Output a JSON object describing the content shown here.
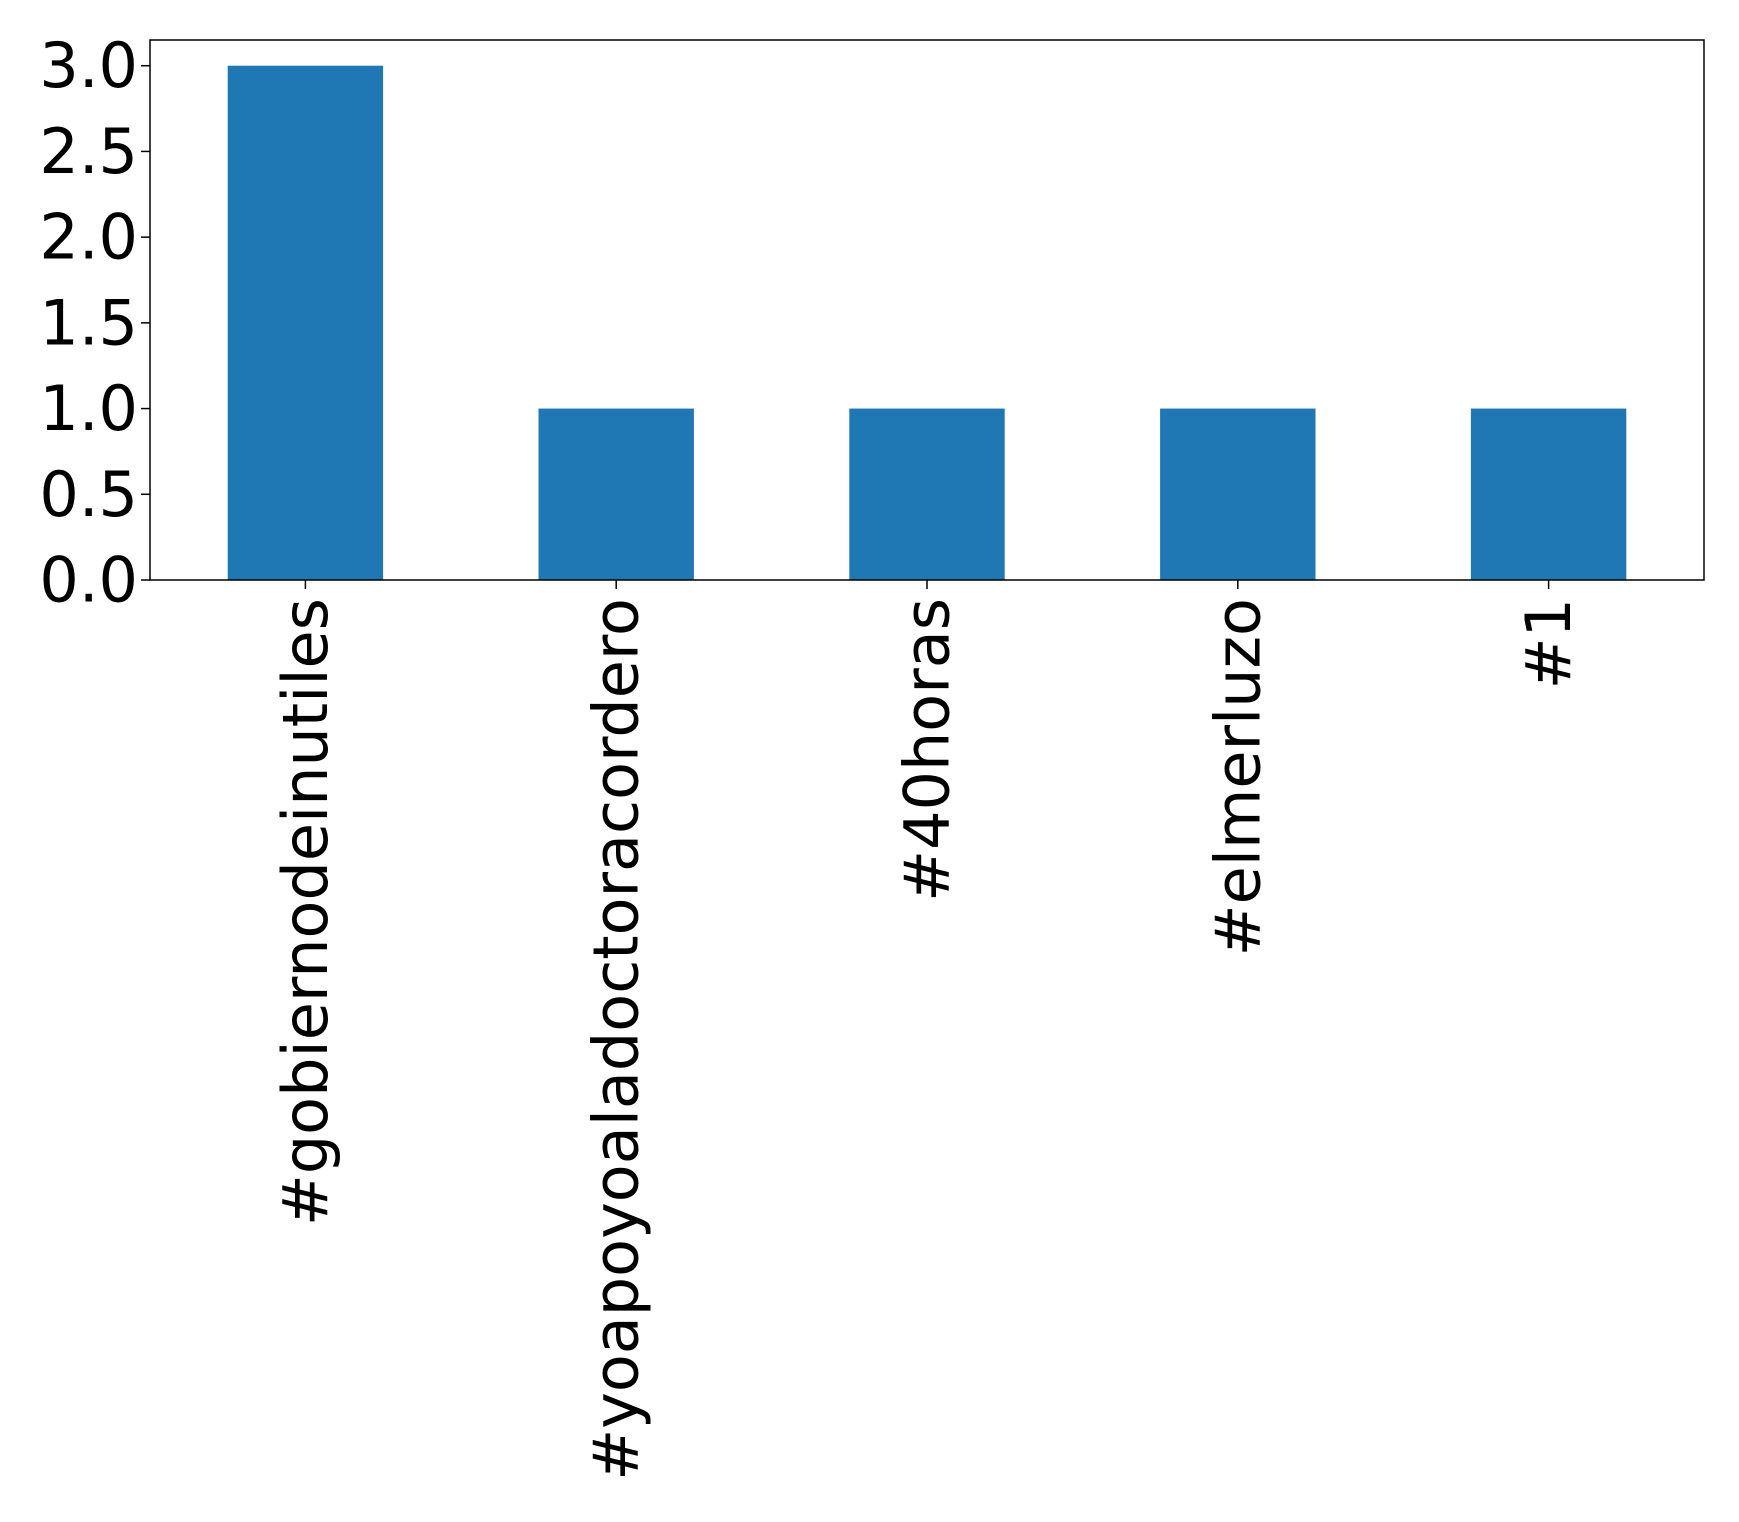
{
  "chart_data": {
    "type": "bar",
    "title": "",
    "xlabel": "",
    "ylabel": "",
    "categories": [
      "#gobiernodeinutiles",
      "#yoapoyoaladoctoracordero",
      "#40horas",
      "#elmerluzo",
      "#1"
    ],
    "values": [
      3,
      1,
      1,
      1,
      1
    ],
    "ylim": [
      0,
      3.15
    ],
    "yticks": [
      "0.0",
      "0.5",
      "1.0",
      "1.5",
      "2.0",
      "2.5",
      "3.0"
    ],
    "bar_color": "#1f77b4",
    "grid": false,
    "legend": "none"
  }
}
